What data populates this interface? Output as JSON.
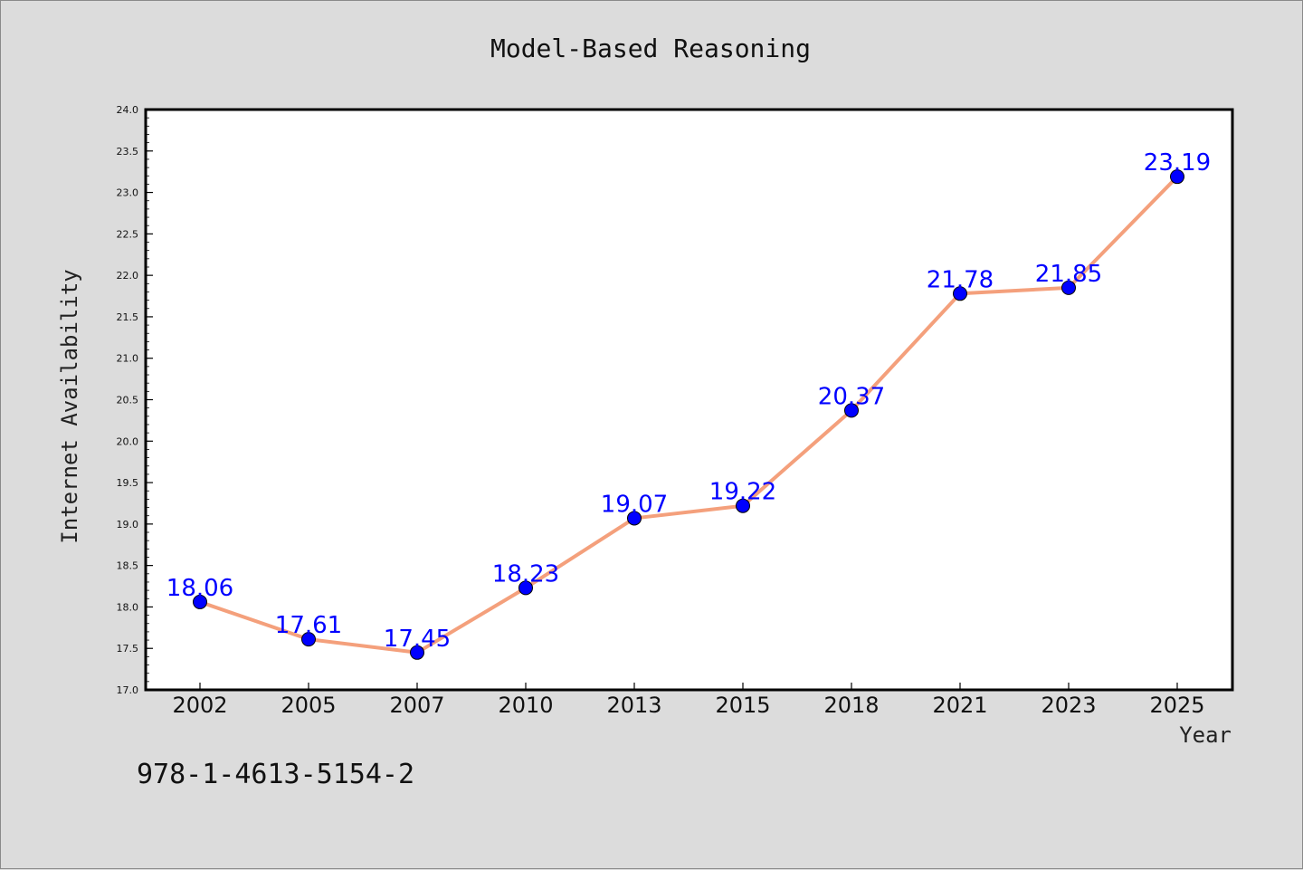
{
  "chart_data": {
    "type": "line",
    "title": "Model-Based Reasoning",
    "xlabel": "Year",
    "ylabel": "Internet Availability",
    "categories": [
      "2002",
      "2005",
      "2007",
      "2010",
      "2013",
      "2015",
      "2018",
      "2021",
      "2023",
      "2025"
    ],
    "values": [
      18.06,
      17.61,
      17.45,
      18.23,
      19.07,
      19.22,
      20.37,
      21.78,
      21.85,
      23.19
    ],
    "data_labels": [
      "18.06",
      "17.61",
      "17.45",
      "18.23",
      "19.07",
      "19.22",
      "20.37",
      "21.78",
      "21.85",
      "23.19"
    ],
    "ylim": [
      17.0,
      24.0
    ],
    "yticks": [
      "17.0",
      "17.5",
      "18.0",
      "18.5",
      "19.0",
      "19.5",
      "20.0",
      "20.5",
      "21.0",
      "21.5",
      "22.0",
      "22.5",
      "23.0",
      "23.5",
      "24.0"
    ],
    "grid": false,
    "legend": "none",
    "line_color": "#f4a07c",
    "marker_color": "#0000ff",
    "label_color": "#0000ff"
  },
  "annotation": "978-1-4613-5154-2"
}
